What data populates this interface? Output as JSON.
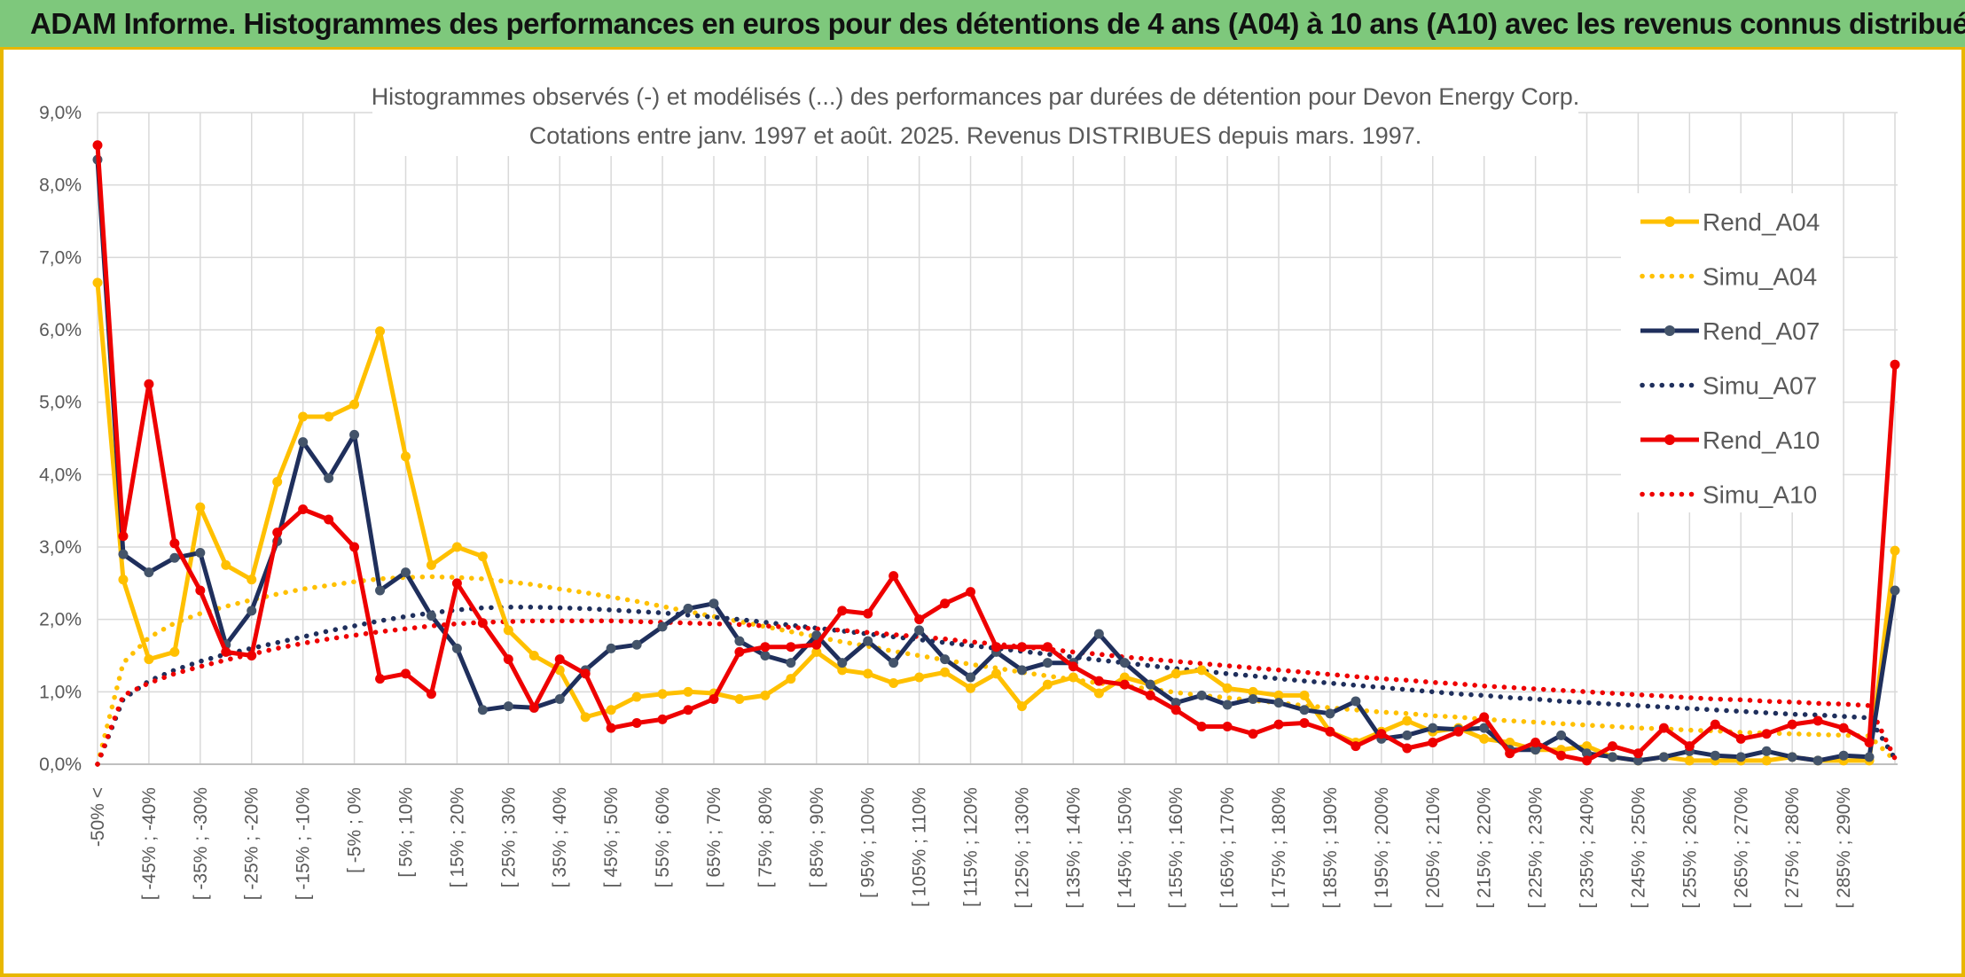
{
  "header": {
    "title": "ADAM Informe. Histogrammes des performances en euros pour des détentions de 4 ans (A04) à 10 ans (A10) avec les revenus connus distribués"
  },
  "chart_data": {
    "type": "line",
    "title": "Histogrammes observés (-) et modélisés (...) des performances par durées de détention pour Devon Energy Corp.",
    "subtitle": "Cotations entre janv. 1997 et août. 2025. Revenus DISTRIBUES depuis mars. 1997.",
    "xlabel": "",
    "ylabel": "",
    "ylim": [
      0,
      9
    ],
    "y_ticks": [
      "0,0%",
      "1,0%",
      "2,0%",
      "3,0%",
      "4,0%",
      "5,0%",
      "6,0%",
      "7,0%",
      "8,0%",
      "9,0%"
    ],
    "grid": true,
    "legend_position": "right",
    "x_tick_labels": [
      "-50% <",
      "[ -45% ; -40%",
      "[ -35% ; -30%",
      "[ -25% ; -20%",
      "[ -15% ; -10%",
      "[ -5% ; 0%",
      "[ 5% ; 10%",
      "[ 15% ; 20%",
      "[ 25% ; 30%",
      "[ 35% ; 40%",
      "[ 45% ; 50%",
      "[ 55% ; 60%",
      "[ 65% ; 70%",
      "[ 75% ; 80%",
      "[ 85% ; 90%",
      "[ 95% ; 100%",
      "[ 105% ; 110%",
      "[ 115% ; 120%",
      "[ 125% ; 130%",
      "[ 135% ; 140%",
      "[ 145% ; 150%",
      "[ 155% ; 160%",
      "[ 165% ; 170%",
      "[ 175% ; 180%",
      "[ 185% ; 190%",
      "[ 195% ; 200%",
      "[ 205% ; 210%",
      "[ 215% ; 220%",
      "[ 225% ; 230%",
      "[ 235% ; 240%",
      "[ 245% ; 250%",
      "[ 255% ; 260%",
      "[ 265% ; 270%",
      "[ 275% ; 280%",
      "[ 285% ; 290%"
    ],
    "categories_count": 71,
    "series": [
      {
        "name": "Rend_A04",
        "style": "solid",
        "color": "#ffc000",
        "values": [
          6.65,
          2.55,
          1.45,
          1.55,
          3.55,
          2.75,
          2.55,
          3.9,
          4.8,
          4.8,
          4.97,
          5.98,
          4.25,
          2.75,
          3.0,
          2.87,
          1.85,
          1.5,
          1.3,
          0.65,
          0.75,
          0.93,
          0.97,
          1.0,
          0.98,
          0.9,
          0.95,
          1.18,
          1.55,
          1.3,
          1.25,
          1.12,
          1.2,
          1.27,
          1.05,
          1.25,
          0.8,
          1.1,
          1.2,
          0.98,
          1.2,
          1.1,
          1.25,
          1.3,
          1.05,
          1.0,
          0.95,
          0.95,
          0.45,
          0.3,
          0.45,
          0.6,
          0.45,
          0.5,
          0.35,
          0.3,
          0.2,
          0.2,
          0.25,
          0.1,
          0.05,
          0.1,
          0.05,
          0.05,
          0.05,
          0.05,
          0.1,
          0.05,
          0.05,
          0.05,
          2.95
        ]
      },
      {
        "name": "Simu_A04",
        "style": "dotted",
        "color": "#ffc000",
        "values": [
          0.0,
          1.4,
          1.75,
          1.95,
          2.08,
          2.18,
          2.27,
          2.35,
          2.42,
          2.47,
          2.52,
          2.56,
          2.58,
          2.59,
          2.58,
          2.56,
          2.52,
          2.48,
          2.42,
          2.37,
          2.31,
          2.25,
          2.18,
          2.11,
          2.04,
          1.97,
          1.9,
          1.83,
          1.76,
          1.69,
          1.63,
          1.56,
          1.5,
          1.44,
          1.38,
          1.33,
          1.27,
          1.22,
          1.17,
          1.12,
          1.08,
          1.04,
          0.99,
          0.95,
          0.92,
          0.88,
          0.85,
          0.81,
          0.78,
          0.75,
          0.72,
          0.7,
          0.67,
          0.65,
          0.62,
          0.6,
          0.58,
          0.56,
          0.54,
          0.52,
          0.5,
          0.49,
          0.47,
          0.46,
          0.44,
          0.43,
          0.42,
          0.41,
          0.4,
          0.39,
          0.05
        ]
      },
      {
        "name": "Rend_A07",
        "style": "solid",
        "color": "#1f2f5c",
        "values": [
          8.35,
          2.9,
          2.65,
          2.85,
          2.92,
          1.65,
          2.12,
          3.08,
          4.45,
          3.95,
          4.55,
          2.4,
          2.65,
          2.05,
          1.6,
          0.75,
          0.8,
          0.78,
          0.9,
          1.3,
          1.6,
          1.65,
          1.9,
          2.15,
          2.22,
          1.7,
          1.5,
          1.4,
          1.78,
          1.4,
          1.7,
          1.4,
          1.85,
          1.45,
          1.2,
          1.55,
          1.3,
          1.4,
          1.4,
          1.8,
          1.4,
          1.1,
          0.85,
          0.95,
          0.82,
          0.9,
          0.85,
          0.75,
          0.7,
          0.87,
          0.35,
          0.4,
          0.5,
          0.48,
          0.5,
          0.2,
          0.2,
          0.4,
          0.15,
          0.1,
          0.05,
          0.1,
          0.18,
          0.12,
          0.1,
          0.18,
          0.1,
          0.05,
          0.12,
          0.1,
          2.4
        ]
      },
      {
        "name": "Simu_A07",
        "style": "dotted",
        "color": "#1f2f5c",
        "values": [
          0.0,
          0.9,
          1.15,
          1.3,
          1.42,
          1.52,
          1.6,
          1.68,
          1.76,
          1.84,
          1.91,
          1.98,
          2.04,
          2.09,
          2.13,
          2.16,
          2.17,
          2.17,
          2.16,
          2.15,
          2.13,
          2.11,
          2.09,
          2.06,
          2.03,
          2.0,
          1.96,
          1.92,
          1.88,
          1.84,
          1.8,
          1.76,
          1.72,
          1.68,
          1.64,
          1.6,
          1.56,
          1.52,
          1.48,
          1.44,
          1.4,
          1.36,
          1.32,
          1.29,
          1.25,
          1.22,
          1.18,
          1.15,
          1.12,
          1.09,
          1.06,
          1.03,
          1.0,
          0.97,
          0.95,
          0.92,
          0.9,
          0.87,
          0.85,
          0.83,
          0.81,
          0.79,
          0.77,
          0.75,
          0.73,
          0.71,
          0.69,
          0.68,
          0.66,
          0.64,
          0.08
        ]
      },
      {
        "name": "Rend_A10",
        "style": "solid",
        "color": "#ee0000",
        "values": [
          8.55,
          3.15,
          5.25,
          3.05,
          2.4,
          1.55,
          1.5,
          3.2,
          3.52,
          3.38,
          3.0,
          1.18,
          1.25,
          0.97,
          2.5,
          1.95,
          1.45,
          0.78,
          1.45,
          1.25,
          0.5,
          0.57,
          0.62,
          0.75,
          0.9,
          1.55,
          1.62,
          1.62,
          1.65,
          2.12,
          2.08,
          2.6,
          2.0,
          2.22,
          2.38,
          1.62,
          1.62,
          1.62,
          1.35,
          1.15,
          1.1,
          0.95,
          0.75,
          0.52,
          0.52,
          0.42,
          0.55,
          0.57,
          0.45,
          0.25,
          0.42,
          0.22,
          0.3,
          0.45,
          0.65,
          0.15,
          0.3,
          0.12,
          0.05,
          0.25,
          0.15,
          0.5,
          0.25,
          0.55,
          0.35,
          0.42,
          0.55,
          0.6,
          0.5,
          0.3,
          5.52
        ]
      },
      {
        "name": "Simu_A10",
        "style": "dotted",
        "color": "#ee0000",
        "values": [
          0.0,
          0.95,
          1.12,
          1.25,
          1.35,
          1.44,
          1.52,
          1.6,
          1.67,
          1.73,
          1.78,
          1.83,
          1.87,
          1.91,
          1.94,
          1.96,
          1.97,
          1.98,
          1.98,
          1.98,
          1.98,
          1.97,
          1.96,
          1.95,
          1.94,
          1.93,
          1.91,
          1.89,
          1.87,
          1.85,
          1.82,
          1.79,
          1.76,
          1.73,
          1.69,
          1.66,
          1.62,
          1.59,
          1.55,
          1.52,
          1.48,
          1.45,
          1.42,
          1.39,
          1.36,
          1.33,
          1.3,
          1.27,
          1.24,
          1.21,
          1.18,
          1.16,
          1.13,
          1.11,
          1.08,
          1.06,
          1.04,
          1.02,
          1.0,
          0.98,
          0.96,
          0.94,
          0.92,
          0.9,
          0.89,
          0.87,
          0.86,
          0.84,
          0.83,
          0.81,
          0.08
        ]
      }
    ]
  }
}
